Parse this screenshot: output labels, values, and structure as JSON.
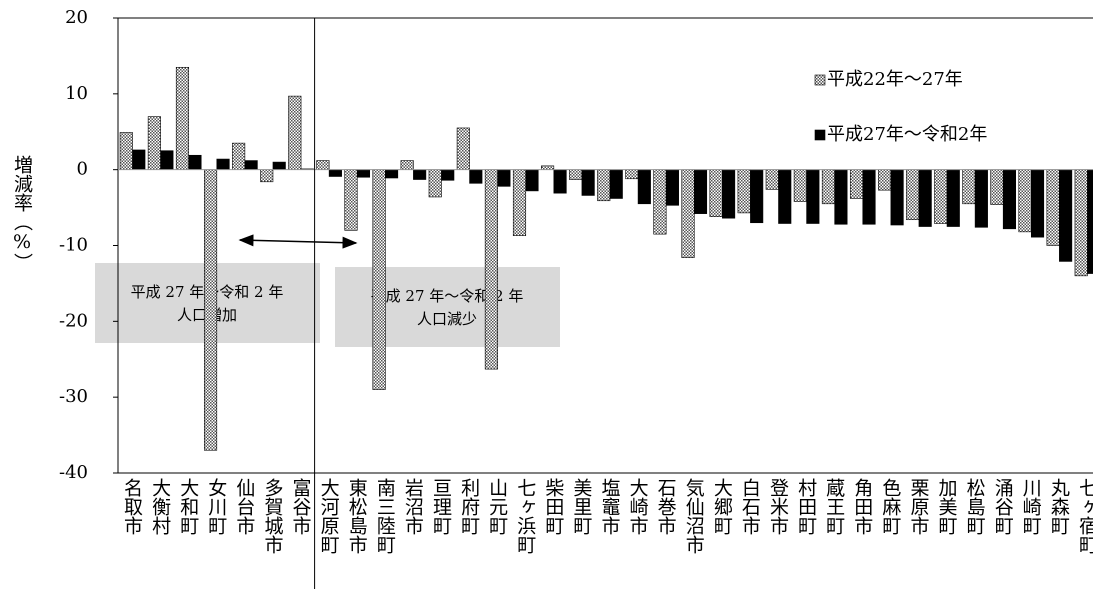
{
  "chart_data": {
    "type": "bar",
    "y_label": "増減率（%）",
    "categories": [
      "名取市",
      "大衡村",
      "大和町",
      "女川町",
      "仙台市",
      "多賀城市",
      "富谷市",
      "大河原町",
      "東松島市",
      "南三陸町",
      "岩沼市",
      "亘理町",
      "利府町",
      "山元町",
      "七ヶ浜町",
      "柴田町",
      "美里町",
      "塩竈市",
      "大崎市",
      "石巻市",
      "気仙沼市",
      "大郷町",
      "白石市",
      "登米市",
      "村田町",
      "蔵王町",
      "角田市",
      "色麻町",
      "栗原市",
      "加美町",
      "松島町",
      "涌谷町",
      "川崎町",
      "丸森町",
      "七ヶ宿町"
    ],
    "series": [
      {
        "name": "平成22年～27年",
        "color": "hatched",
        "values": [
          4.9,
          7.0,
          13.5,
          -37.0,
          3.5,
          -1.6,
          9.7,
          1.2,
          -8.0,
          -29.0,
          1.2,
          -3.6,
          5.5,
          -26.3,
          -8.7,
          0.5,
          -1.3,
          -4.1,
          -1.2,
          -8.5,
          -11.6,
          -6.2,
          -5.7,
          -2.6,
          -4.2,
          -4.5,
          -3.8,
          -2.7,
          -6.6,
          -7.1,
          -4.5,
          -4.6,
          -8.2,
          -10.0,
          -14.0
        ]
      },
      {
        "name": "平成27年～令和2年",
        "color": "#000000",
        "values": [
          2.6,
          2.5,
          1.9,
          1.4,
          1.2,
          1.0,
          0.1,
          -0.9,
          -1.0,
          -1.1,
          -1.3,
          -1.4,
          -1.8,
          -2.2,
          -2.8,
          -3.1,
          -3.4,
          -3.8,
          -4.5,
          -4.7,
          -5.8,
          -6.4,
          -7.0,
          -7.1,
          -7.1,
          -7.2,
          -7.2,
          -7.3,
          -7.5,
          -7.5,
          -7.6,
          -7.8,
          -8.9,
          -12.1,
          -13.7
        ]
      }
    ],
    "ylim": [
      -40,
      20
    ],
    "yticks": [
      -40,
      -30,
      -20,
      -10,
      0,
      10,
      20
    ],
    "legend": "upper right",
    "annotations": [
      {
        "lines": [
          "平成 27 年～令和 2 年",
          "人口増加"
        ]
      },
      {
        "lines": [
          "平成 27 年～令和 2 年",
          "人口減少"
        ]
      }
    ]
  }
}
